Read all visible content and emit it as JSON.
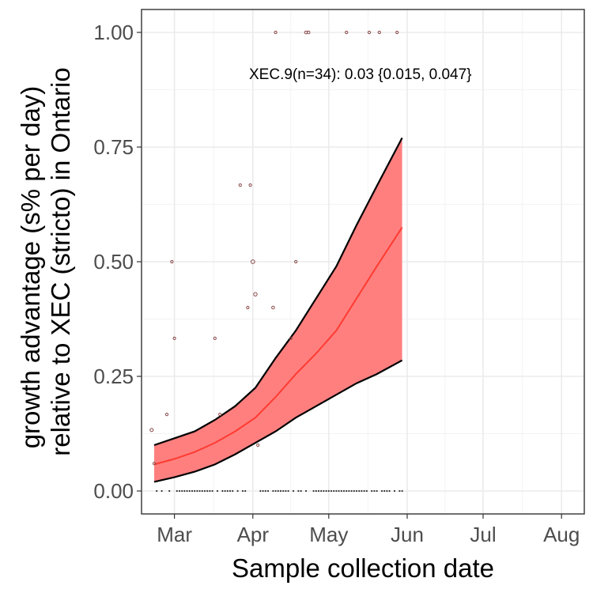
{
  "chart_data": {
    "type": "line",
    "title": "",
    "xlabel": "Sample collection date",
    "ylabel_lines": [
      "growth advantage (s% per day)",
      "relative to XEC (stricto) in Ontario"
    ],
    "annotation": "XEC.9(n=34): 0.03 {0.015, 0.047}",
    "x_range": [
      "2025-02-16",
      "2025-08-10"
    ],
    "y_range": [
      -0.05,
      1.05
    ],
    "x_ticks": [
      {
        "date": "2025-03-01",
        "label": "Mar"
      },
      {
        "date": "2025-04-01",
        "label": "Apr"
      },
      {
        "date": "2025-05-01",
        "label": "May"
      },
      {
        "date": "2025-06-01",
        "label": "Jun"
      },
      {
        "date": "2025-07-01",
        "label": "Jul"
      },
      {
        "date": "2025-08-01",
        "label": "Aug"
      }
    ],
    "y_ticks": [
      {
        "value": 0.0,
        "label": "0.00"
      },
      {
        "value": 0.25,
        "label": "0.25"
      },
      {
        "value": 0.5,
        "label": "0.50"
      },
      {
        "value": 0.75,
        "label": "0.75"
      },
      {
        "value": 1.0,
        "label": "1.00"
      }
    ],
    "grid": true,
    "series": [
      {
        "kind": "ribbon",
        "fill": "#ff7f7f",
        "border": "#000000",
        "x": [
          "2025-02-21",
          "2025-03-01",
          "2025-03-09",
          "2025-03-17",
          "2025-03-25",
          "2025-04-02",
          "2025-04-10",
          "2025-04-18",
          "2025-04-26",
          "2025-05-04",
          "2025-05-12",
          "2025-05-20",
          "2025-05-30"
        ],
        "lower": [
          0.02,
          0.03,
          0.042,
          0.058,
          0.08,
          0.105,
          0.13,
          0.16,
          0.185,
          0.21,
          0.235,
          0.255,
          0.285
        ],
        "upper": [
          0.1,
          0.115,
          0.13,
          0.155,
          0.185,
          0.225,
          0.29,
          0.35,
          0.42,
          0.49,
          0.58,
          0.665,
          0.77
        ]
      },
      {
        "kind": "line",
        "color": "#ff3b30",
        "x": [
          "2025-02-21",
          "2025-03-01",
          "2025-03-09",
          "2025-03-17",
          "2025-03-25",
          "2025-04-02",
          "2025-04-10",
          "2025-04-18",
          "2025-04-26",
          "2025-05-04",
          "2025-05-12",
          "2025-05-20",
          "2025-05-30"
        ],
        "y": [
          0.058,
          0.07,
          0.085,
          0.105,
          0.13,
          0.16,
          0.205,
          0.255,
          0.3,
          0.35,
          0.42,
          0.49,
          0.575
        ]
      },
      {
        "kind": "points",
        "color": "#8a4a4a",
        "points": [
          {
            "x": "2025-02-20",
            "y": 0.133,
            "r": 2
          },
          {
            "x": "2025-02-21",
            "y": 0.06,
            "r": 1.6
          },
          {
            "x": "2025-02-26",
            "y": 0.167,
            "r": 1.6
          },
          {
            "x": "2025-02-28",
            "y": 0.5,
            "r": 1.6
          },
          {
            "x": "2025-03-01",
            "y": 0.333,
            "r": 1.6
          },
          {
            "x": "2025-03-17",
            "y": 0.333,
            "r": 1.6
          },
          {
            "x": "2025-03-19",
            "y": 0.167,
            "r": 1.6
          },
          {
            "x": "2025-03-27",
            "y": 0.667,
            "r": 1.6
          },
          {
            "x": "2025-03-30",
            "y": 0.4,
            "r": 1.6
          },
          {
            "x": "2025-03-31",
            "y": 0.667,
            "r": 1.6
          },
          {
            "x": "2025-04-01",
            "y": 0.5,
            "r": 2.4
          },
          {
            "x": "2025-04-02",
            "y": 0.429,
            "r": 2.2
          },
          {
            "x": "2025-04-03",
            "y": 0.1,
            "r": 1.6
          },
          {
            "x": "2025-04-09",
            "y": 0.4,
            "r": 1.8
          },
          {
            "x": "2025-04-10",
            "y": 1.0,
            "r": 1.6
          },
          {
            "x": "2025-04-16",
            "y": 0.333,
            "r": 1.6
          },
          {
            "x": "2025-04-18",
            "y": 0.5,
            "r": 1.6
          },
          {
            "x": "2025-04-22",
            "y": 1.0,
            "r": 1.8
          },
          {
            "x": "2025-04-23",
            "y": 1.0,
            "r": 1.8
          },
          {
            "x": "2025-05-08",
            "y": 1.0,
            "r": 1.6
          },
          {
            "x": "2025-05-17",
            "y": 1.0,
            "r": 1.6
          },
          {
            "x": "2025-05-21",
            "y": 1.0,
            "r": 1.6
          },
          {
            "x": "2025-05-28",
            "y": 1.0,
            "r": 1.6
          }
        ]
      },
      {
        "kind": "zero-points",
        "color": "#333333",
        "x": [
          "2025-02-22",
          "2025-02-24",
          "2025-02-27",
          "2025-03-02",
          "2025-03-03",
          "2025-03-04",
          "2025-03-05",
          "2025-03-06",
          "2025-03-07",
          "2025-03-08",
          "2025-03-09",
          "2025-03-10",
          "2025-03-11",
          "2025-03-12",
          "2025-03-13",
          "2025-03-14",
          "2025-03-15",
          "2025-03-16",
          "2025-03-18",
          "2025-03-20",
          "2025-03-21",
          "2025-03-22",
          "2025-03-23",
          "2025-03-24",
          "2025-03-26",
          "2025-03-28",
          "2025-03-29",
          "2025-04-04",
          "2025-04-05",
          "2025-04-06",
          "2025-04-07",
          "2025-04-09",
          "2025-04-10",
          "2025-04-11",
          "2025-04-12",
          "2025-04-13",
          "2025-04-14",
          "2025-04-15",
          "2025-04-17",
          "2025-04-19",
          "2025-04-20",
          "2025-04-22",
          "2025-04-25",
          "2025-04-26",
          "2025-04-27",
          "2025-04-28",
          "2025-04-29",
          "2025-04-30",
          "2025-05-01",
          "2025-05-02",
          "2025-05-03",
          "2025-05-04",
          "2025-05-05",
          "2025-05-06",
          "2025-05-07",
          "2025-05-08",
          "2025-05-09",
          "2025-05-10",
          "2025-05-11",
          "2025-05-12",
          "2025-05-13",
          "2025-05-14",
          "2025-05-15",
          "2025-05-16",
          "2025-05-18",
          "2025-05-19",
          "2025-05-20",
          "2025-05-22",
          "2025-05-23",
          "2025-05-24",
          "2025-05-25",
          "2025-05-27",
          "2025-05-29",
          "2025-05-30"
        ]
      }
    ],
    "colors": {
      "panel_border": "#333333",
      "grid_major": "#ebebeb",
      "grid_minor": "#f3f3f3",
      "tick_text": "#4d4d4d",
      "ribbon_fill": "#ff7f7f",
      "fit_line": "#ff3b30"
    }
  }
}
